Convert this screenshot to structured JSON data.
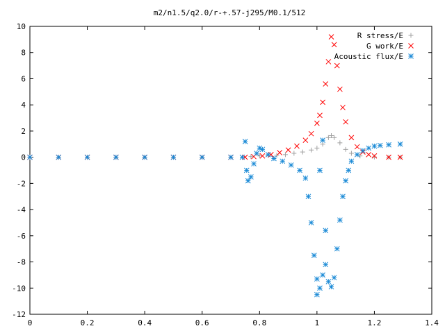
{
  "chart_data": {
    "type": "scatter",
    "title": "m2/n1.5/q2.0/r-+.57-j295/M0.1/512",
    "xlabel": "",
    "ylabel": "",
    "xlim": [
      0,
      1.4
    ],
    "ylim": [
      -12,
      10
    ],
    "xticks": [
      "0",
      "0.2",
      "0.4",
      "0.6",
      "0.8",
      "1",
      "1.2",
      "1.4"
    ],
    "yticks": [
      "-12",
      "-10",
      "-8",
      "-6",
      "-4",
      "-2",
      "0",
      "2",
      "4",
      "6",
      "8",
      "10"
    ],
    "grid": false,
    "legend_position": "top-right",
    "series": [
      {
        "name": "R stress/E",
        "marker": "plus",
        "color": "#a0a0a0",
        "points": [
          [
            0,
            0
          ],
          [
            0.1,
            0
          ],
          [
            0.2,
            0
          ],
          [
            0.3,
            0
          ],
          [
            0.4,
            0
          ],
          [
            0.5,
            0
          ],
          [
            0.6,
            0
          ],
          [
            0.7,
            0
          ],
          [
            0.74,
            0
          ],
          [
            0.77,
            0.05
          ],
          [
            0.8,
            0.1
          ],
          [
            0.83,
            0.12
          ],
          [
            0.86,
            0.15
          ],
          [
            0.89,
            0.2
          ],
          [
            0.92,
            0.3
          ],
          [
            0.95,
            0.4
          ],
          [
            0.98,
            0.55
          ],
          [
            1.0,
            0.7
          ],
          [
            1.02,
            1.0
          ],
          [
            1.04,
            1.5
          ],
          [
            1.05,
            1.65
          ],
          [
            1.06,
            1.5
          ],
          [
            1.08,
            1.1
          ],
          [
            1.1,
            0.6
          ],
          [
            1.12,
            0.3
          ],
          [
            1.15,
            0.1
          ],
          [
            1.2,
            0.02
          ],
          [
            1.25,
            0
          ],
          [
            1.29,
            0
          ]
        ]
      },
      {
        "name": "G work/E",
        "marker": "cross",
        "color": "#ff0000",
        "points": [
          [
            0,
            0
          ],
          [
            0.1,
            0
          ],
          [
            0.2,
            0
          ],
          [
            0.3,
            0
          ],
          [
            0.4,
            0
          ],
          [
            0.5,
            0
          ],
          [
            0.6,
            0
          ],
          [
            0.7,
            0
          ],
          [
            0.75,
            0
          ],
          [
            0.78,
            0.05
          ],
          [
            0.81,
            0.1
          ],
          [
            0.84,
            0.2
          ],
          [
            0.87,
            0.35
          ],
          [
            0.9,
            0.55
          ],
          [
            0.93,
            0.85
          ],
          [
            0.96,
            1.3
          ],
          [
            0.98,
            1.8
          ],
          [
            1.0,
            2.6
          ],
          [
            1.01,
            3.2
          ],
          [
            1.02,
            4.2
          ],
          [
            1.03,
            5.6
          ],
          [
            1.04,
            7.3
          ],
          [
            1.05,
            9.2
          ],
          [
            1.06,
            8.6
          ],
          [
            1.07,
            7.0
          ],
          [
            1.08,
            5.2
          ],
          [
            1.09,
            3.8
          ],
          [
            1.1,
            2.7
          ],
          [
            1.12,
            1.5
          ],
          [
            1.14,
            0.8
          ],
          [
            1.16,
            0.4
          ],
          [
            1.18,
            0.2
          ],
          [
            1.2,
            0.1
          ],
          [
            1.25,
            0
          ],
          [
            1.29,
            0
          ]
        ]
      },
      {
        "name": "Acoustic flux/E",
        "marker": "star",
        "color": "#1a8ad6",
        "points": [
          [
            0,
            0
          ],
          [
            0.1,
            0
          ],
          [
            0.2,
            0
          ],
          [
            0.3,
            0
          ],
          [
            0.4,
            0
          ],
          [
            0.5,
            0
          ],
          [
            0.6,
            0
          ],
          [
            0.7,
            0
          ],
          [
            0.74,
            0
          ],
          [
            0.75,
            1.2
          ],
          [
            0.755,
            -1.0
          ],
          [
            0.76,
            -1.8
          ],
          [
            0.77,
            -1.5
          ],
          [
            0.78,
            -0.5
          ],
          [
            0.79,
            0.3
          ],
          [
            0.8,
            0.7
          ],
          [
            0.81,
            0.6
          ],
          [
            0.83,
            0.2
          ],
          [
            0.85,
            -0.1
          ],
          [
            0.88,
            -0.3
          ],
          [
            0.91,
            -0.6
          ],
          [
            0.94,
            -1.0
          ],
          [
            0.96,
            -1.6
          ],
          [
            0.97,
            -3.0
          ],
          [
            0.98,
            -5.0
          ],
          [
            0.99,
            -7.5
          ],
          [
            1.0,
            -9.3
          ],
          [
            1.0,
            -10.5
          ],
          [
            1.01,
            -1.0
          ],
          [
            1.01,
            -10.0
          ],
          [
            1.02,
            1.3
          ],
          [
            1.02,
            -9.0
          ],
          [
            1.03,
            -8.2
          ],
          [
            1.03,
            -5.6
          ],
          [
            1.04,
            -9.5
          ],
          [
            1.05,
            -9.9
          ],
          [
            1.06,
            -9.2
          ],
          [
            1.07,
            -7.0
          ],
          [
            1.08,
            -4.8
          ],
          [
            1.09,
            -3.0
          ],
          [
            1.1,
            -1.8
          ],
          [
            1.11,
            -1.0
          ],
          [
            1.12,
            -0.3
          ],
          [
            1.14,
            0.2
          ],
          [
            1.16,
            0.5
          ],
          [
            1.18,
            0.7
          ],
          [
            1.2,
            0.85
          ],
          [
            1.22,
            0.9
          ],
          [
            1.25,
            0.95
          ],
          [
            1.29,
            1.0
          ]
        ]
      }
    ]
  }
}
